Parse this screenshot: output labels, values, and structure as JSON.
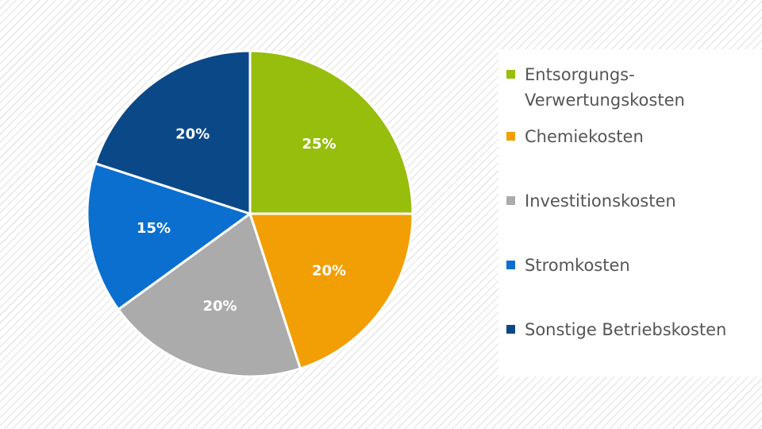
{
  "chart_data": {
    "type": "pie",
    "categories": [
      "Entsorgungs-Verwertungskosten",
      "Chemiekosten",
      "Investitionskosten",
      "Stromkosten",
      "Sonstige Betriebskosten"
    ],
    "values": [
      25,
      20,
      20,
      15,
      20
    ],
    "labels": [
      "25%",
      "20%",
      "20%",
      "15%",
      "20%"
    ],
    "colors": [
      "#97BD0D",
      "#F29F05",
      "#ABABAB",
      "#0B6FCF",
      "#0B4887"
    ],
    "legend_placement": "right",
    "title": "",
    "slice_border_color": "#ffffff"
  },
  "legend": {
    "items": [
      {
        "label": "Entsorgungs-\nVerwertungskosten"
      },
      {
        "label": "Chemiekosten"
      },
      {
        "label": "Investitionskosten"
      },
      {
        "label": "Stromkosten"
      },
      {
        "label": "Sonstige Betriebskosten"
      }
    ]
  }
}
